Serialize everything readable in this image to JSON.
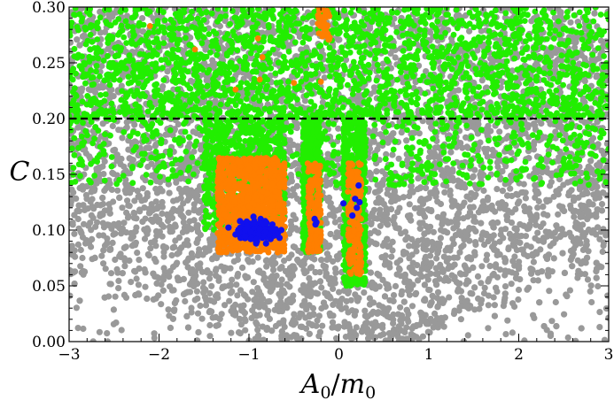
{
  "chart_data": {
    "type": "scatter",
    "title": "",
    "xlabel": "A_0/m_0",
    "ylabel": "C",
    "xlim": [
      -3,
      3
    ],
    "ylim": [
      0.0,
      0.3
    ],
    "x_ticks": [
      -3,
      -2,
      -1,
      0,
      1,
      2,
      3
    ],
    "x_tick_labels": [
      "−3",
      "−2",
      "−1",
      "0",
      "1",
      "2",
      "3"
    ],
    "y_ticks": [
      0.0,
      0.05,
      0.1,
      0.15,
      0.2,
      0.25,
      0.3
    ],
    "y_tick_labels": [
      "0.00",
      "0.05",
      "0.10",
      "0.15",
      "0.20",
      "0.25",
      "0.30"
    ],
    "reference_line": {
      "y": 0.2,
      "style": "dashed",
      "color": "#000000"
    },
    "grid": false,
    "legend": "none",
    "colors": {
      "gray": "#999999",
      "green": "#22ee00",
      "orange": "#ff7f00",
      "blue": "#1010ee"
    },
    "series": [
      {
        "color_key": "gray",
        "description_regions": [
          {
            "x_center": 0.0,
            "x_spread": 3.0,
            "y_min": 0.0,
            "y_max": 0.3
          }
        ]
      },
      {
        "color_key": "green",
        "regions": [
          {
            "x": [
              -3.0,
              3.0
            ],
            "y": [
              0.2,
              0.3
            ]
          },
          {
            "x": [
              -1.5,
              -0.6
            ],
            "y": [
              0.1,
              0.2
            ]
          },
          {
            "x": [
              -0.4,
              -0.2
            ],
            "y": [
              0.08,
              0.2
            ]
          },
          {
            "x": [
              0.05,
              0.3
            ],
            "y": [
              0.05,
              0.2
            ]
          }
        ]
      },
      {
        "color_key": "orange",
        "regions": [
          {
            "x": [
              -1.35,
              -0.6
            ],
            "y": [
              0.08,
              0.165
            ]
          },
          {
            "x": [
              -0.35,
              -0.2
            ],
            "y": [
              0.08,
              0.16
            ]
          },
          {
            "x": [
              0.1,
              0.25
            ],
            "y": [
              0.06,
              0.16
            ]
          },
          {
            "x": [
              -0.25,
              -0.1
            ],
            "y": [
              0.27,
              0.3
            ]
          }
        ]
      },
      {
        "color_key": "blue",
        "points": [
          [
            -1.15,
            0.096
          ],
          [
            -1.12,
            0.1
          ],
          [
            -1.1,
            0.095
          ],
          [
            -1.08,
            0.102
          ],
          [
            -1.06,
            0.098
          ],
          [
            -1.05,
            0.093
          ],
          [
            -1.03,
            0.104
          ],
          [
            -1.02,
            0.099
          ],
          [
            -1.0,
            0.096
          ],
          [
            -0.99,
            0.101
          ],
          [
            -0.98,
            0.092
          ],
          [
            -0.97,
            0.105
          ],
          [
            -0.96,
            0.098
          ],
          [
            -0.95,
            0.094
          ],
          [
            -0.94,
            0.108
          ],
          [
            -0.93,
            0.1
          ],
          [
            -0.92,
            0.097
          ],
          [
            -0.91,
            0.09
          ],
          [
            -0.9,
            0.103
          ],
          [
            -0.89,
            0.099
          ],
          [
            -0.88,
            0.095
          ],
          [
            -0.87,
            0.11
          ],
          [
            -0.86,
            0.1
          ],
          [
            -0.85,
            0.093
          ],
          [
            -0.84,
            0.098
          ],
          [
            -0.83,
            0.104
          ],
          [
            -0.82,
            0.096
          ],
          [
            -0.81,
            0.088
          ],
          [
            -0.8,
            0.101
          ],
          [
            -0.79,
            0.097
          ],
          [
            -0.78,
            0.094
          ],
          [
            -0.77,
            0.1
          ],
          [
            -0.76,
            0.092
          ],
          [
            -0.75,
            0.098
          ],
          [
            -0.74,
            0.105
          ],
          [
            -0.72,
            0.095
          ],
          [
            -0.7,
            0.1
          ],
          [
            -0.68,
            0.097
          ],
          [
            -0.66,
            0.093
          ],
          [
            -0.64,
            0.1
          ],
          [
            -1.1,
            0.108
          ],
          [
            -0.95,
            0.112
          ],
          [
            -0.88,
            0.106
          ],
          [
            -0.82,
            0.108
          ],
          [
            -0.92,
            0.088
          ],
          [
            -0.27,
            0.11
          ],
          [
            -0.25,
            0.107
          ],
          [
            -0.26,
            0.105
          ],
          [
            0.05,
            0.124
          ],
          [
            0.15,
            0.113
          ],
          [
            0.18,
            0.128
          ],
          [
            0.22,
            0.14
          ],
          [
            0.2,
            0.12
          ],
          [
            0.23,
            0.125
          ]
        ]
      }
    ]
  }
}
